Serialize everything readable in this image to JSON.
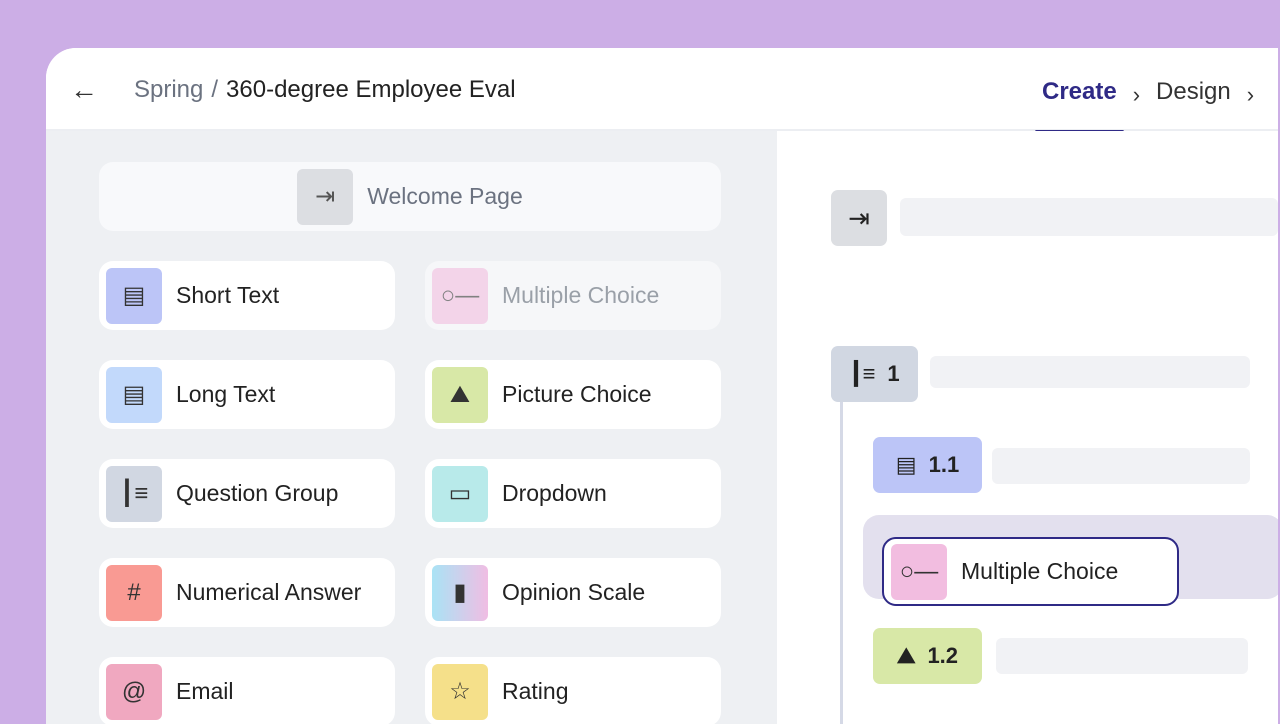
{
  "header": {
    "breadcrumb_parent": "Spring",
    "breadcrumb_separator": "/",
    "title": "360-degree Employee Eval",
    "steps": [
      "Create",
      "Design"
    ],
    "active_step": "Create"
  },
  "palette": {
    "welcome": "Welcome Page",
    "items": [
      {
        "label": "Short Text",
        "icon": "short-text-icon",
        "color": "#bcc5f7"
      },
      {
        "label": "Multiple Choice",
        "icon": "multiple-choice-icon",
        "color": "#f2bde0",
        "disabled": true
      },
      {
        "label": "Long Text",
        "icon": "long-text-icon",
        "color": "#c2d9fb"
      },
      {
        "label": "Picture Choice",
        "icon": "picture-icon",
        "color": "#d8e8a7"
      },
      {
        "label": "Question Group",
        "icon": "question-group-icon",
        "color": "#d1d7e2"
      },
      {
        "label": "Dropdown",
        "icon": "dropdown-icon",
        "color": "#b8eaea"
      },
      {
        "label": "Numerical Answer",
        "icon": "hash-icon",
        "color": "#f99a93"
      },
      {
        "label": "Opinion Scale",
        "icon": "opinion-scale-icon",
        "color": "#b9d6f7"
      },
      {
        "label": "Email",
        "icon": "at-icon",
        "color": "#f0a8c0"
      },
      {
        "label": "Rating",
        "icon": "star-icon",
        "color": "#f5e08a"
      }
    ]
  },
  "outline": {
    "group": "1",
    "q1": "1.1",
    "q2": "1.2",
    "dragging": "Multiple Choice"
  },
  "colors": {
    "accent": "#2f2a86"
  }
}
